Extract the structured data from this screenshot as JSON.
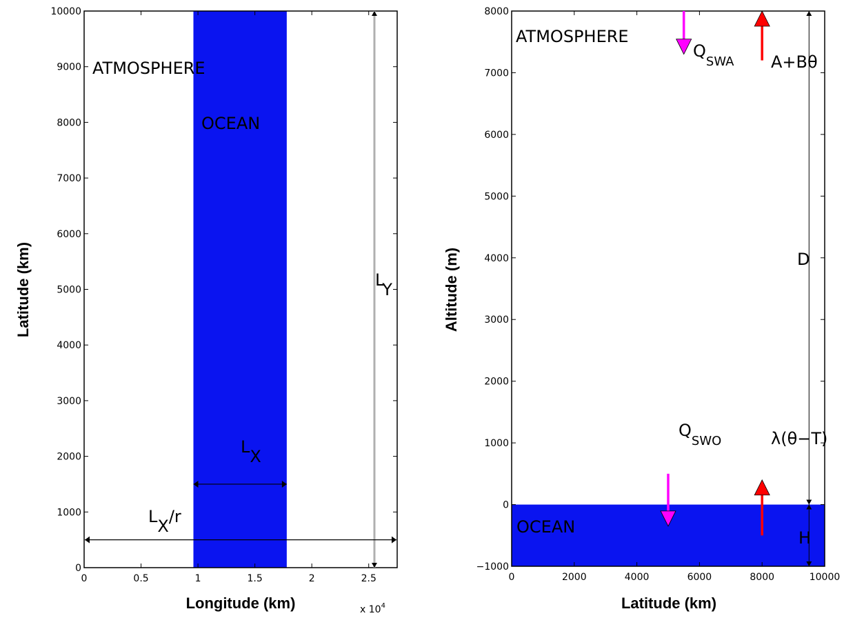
{
  "colors": {
    "ocean": "#0a14f0",
    "shortwave": "#ff00ff",
    "longwave": "#ff0000",
    "frame": "#000000",
    "ly_line": "#b0b0b0"
  },
  "left_panel": {
    "xlabel": "Longitude (km)",
    "ylabel": "Latitude (km)",
    "x_multiplier_base": "x 10",
    "x_multiplier_exp": "4",
    "atmosphere_label": "ATMOSPHERE",
    "ocean_label": "OCEAN",
    "lx": {
      "main": "L",
      "sub": "X"
    },
    "lxr": {
      "main": "L",
      "sub": "X",
      "suffix": "/r"
    },
    "ly": {
      "main": "L",
      "sub": "Y"
    },
    "x_ticks": [
      "0",
      "0.5",
      "1",
      "1.5",
      "2",
      "2.5"
    ],
    "y_ticks": [
      "0",
      "1000",
      "2000",
      "3000",
      "4000",
      "5000",
      "6000",
      "7000",
      "8000",
      "9000",
      "10000"
    ],
    "xlim": [
      0,
      27500
    ],
    "ylim": [
      0,
      10000
    ],
    "ocean_x_range": [
      9600,
      17800
    ],
    "lx_arrow": {
      "x": [
        9600,
        17800
      ],
      "y": 1500
    },
    "lxr_arrow": {
      "x": [
        0,
        27500
      ],
      "y": 500
    },
    "ly_arrow": {
      "x": 25500,
      "y": [
        0,
        10000
      ]
    }
  },
  "right_panel": {
    "xlabel": "Latitude (km)",
    "ylabel": "Altitude (m)",
    "atmosphere_label": "ATMOSPHERE",
    "ocean_label": "OCEAN",
    "q_swa": {
      "main": "Q",
      "sub": "SWA"
    },
    "a_b_theta": "A+Bθ",
    "q_swo": {
      "main": "Q",
      "sub": "SWO"
    },
    "lambda_label": "λ(θ−T)",
    "d_label": "D",
    "h_label": "H",
    "x_ticks": [
      "0",
      "2000",
      "4000",
      "6000",
      "8000",
      "10000"
    ],
    "y_ticks": [
      "−1000",
      "0",
      "1000",
      "2000",
      "3000",
      "4000",
      "5000",
      "6000",
      "7000",
      "8000"
    ],
    "xlim": [
      0,
      10000
    ],
    "ylim": [
      -1000,
      8000
    ],
    "ocean_y_range": [
      -1000,
      0
    ],
    "d_arrow": {
      "x": 9500,
      "y": [
        0,
        8000
      ]
    },
    "h_arrow": {
      "x": 9500,
      "y": [
        -1000,
        0
      ]
    },
    "swa_arrow": {
      "x": 5500,
      "y": [
        8000,
        7300
      ]
    },
    "lw_top_arrow": {
      "x": 8000,
      "y": [
        7200,
        8000
      ]
    },
    "swo_arrow": {
      "x": 5000,
      "y": [
        500,
        -350
      ]
    },
    "lw_bottom_arrow": {
      "x": 8000,
      "y": [
        -500,
        400
      ]
    }
  }
}
